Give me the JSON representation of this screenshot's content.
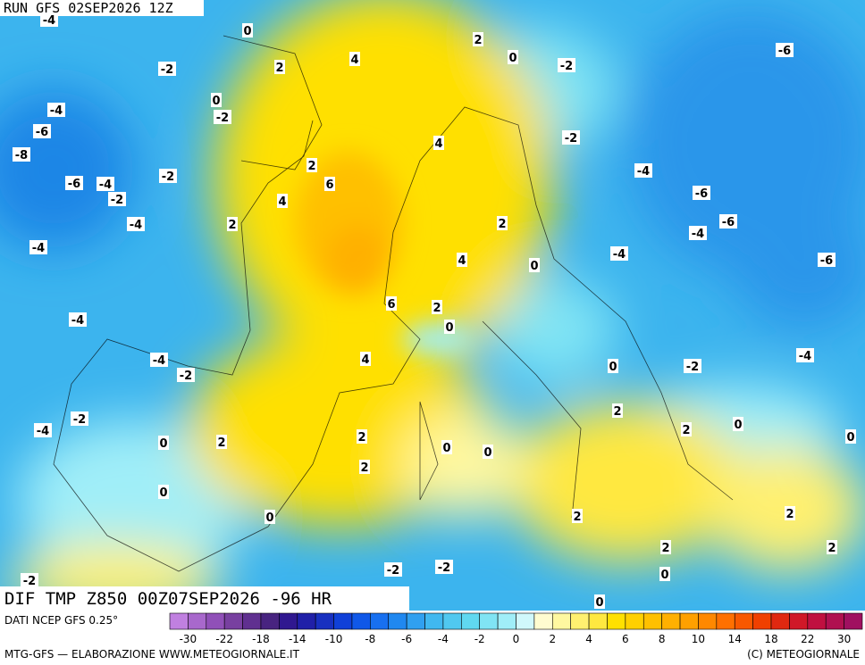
{
  "header": {
    "run": "RUN GFS 02SEP2026 12Z",
    "field": "DIF TMP Z850 00Z07SEP2026 -96 HR"
  },
  "contour_labels": [
    "-4",
    "0",
    "2",
    "0",
    "4",
    "2",
    "-2",
    "-2",
    "-6",
    "0",
    "-4",
    "-2",
    "-6",
    "-2",
    "4",
    "-8",
    "2",
    "-2",
    "-4",
    "-6",
    "-4",
    "6",
    "-2",
    "-6",
    "4",
    "2",
    "-4",
    "2",
    "-6",
    "-4",
    "-4",
    "-4",
    "4",
    "0",
    "-6",
    "6",
    "2",
    "-4",
    "0",
    "4",
    "-4",
    "-2",
    "0",
    "-2",
    "-4",
    "2",
    "-2",
    "0",
    "2",
    "-4",
    "0",
    "2",
    "2",
    "0",
    "0",
    "0",
    "2",
    "0",
    "0",
    "2",
    "2",
    "2",
    "2",
    "-2",
    "-2",
    "0",
    "-2",
    "0"
  ],
  "colorbar": {
    "colors": [
      "#c080e0",
      "#a868cc",
      "#9050b8",
      "#7840a0",
      "#603090",
      "#482480",
      "#301890",
      "#2020a8",
      "#1830c0",
      "#1040d8",
      "#1058e8",
      "#1870f0",
      "#2088f0",
      "#30a0f0",
      "#40b8f0",
      "#50c8f0",
      "#60d8f0",
      "#80e4f4",
      "#a0eef8",
      "#d0f8fc",
      "#fffcd0",
      "#fff8a0",
      "#fff070",
      "#ffe840",
      "#ffe000",
      "#ffd000",
      "#ffc000",
      "#ffb000",
      "#ffa000",
      "#ff8800",
      "#ff7000",
      "#f85800",
      "#f04000",
      "#e02810",
      "#d01828",
      "#c01040",
      "#b01050",
      "#a01060"
    ],
    "ticks": [
      "-30",
      "-22",
      "-18",
      "-14",
      "-10",
      "-8",
      "-6",
      "-4",
      "-2",
      "0",
      "2",
      "4",
      "6",
      "8",
      "10",
      "14",
      "18",
      "22",
      "30"
    ]
  },
  "footer": {
    "source": "DATI NCEP GFS 0.25°",
    "credit_left": "MTG-GFS — ELABORAZIONE WWW.METEOGIORNALE.IT",
    "credit_right": "(C) METEOGIORNALE"
  }
}
